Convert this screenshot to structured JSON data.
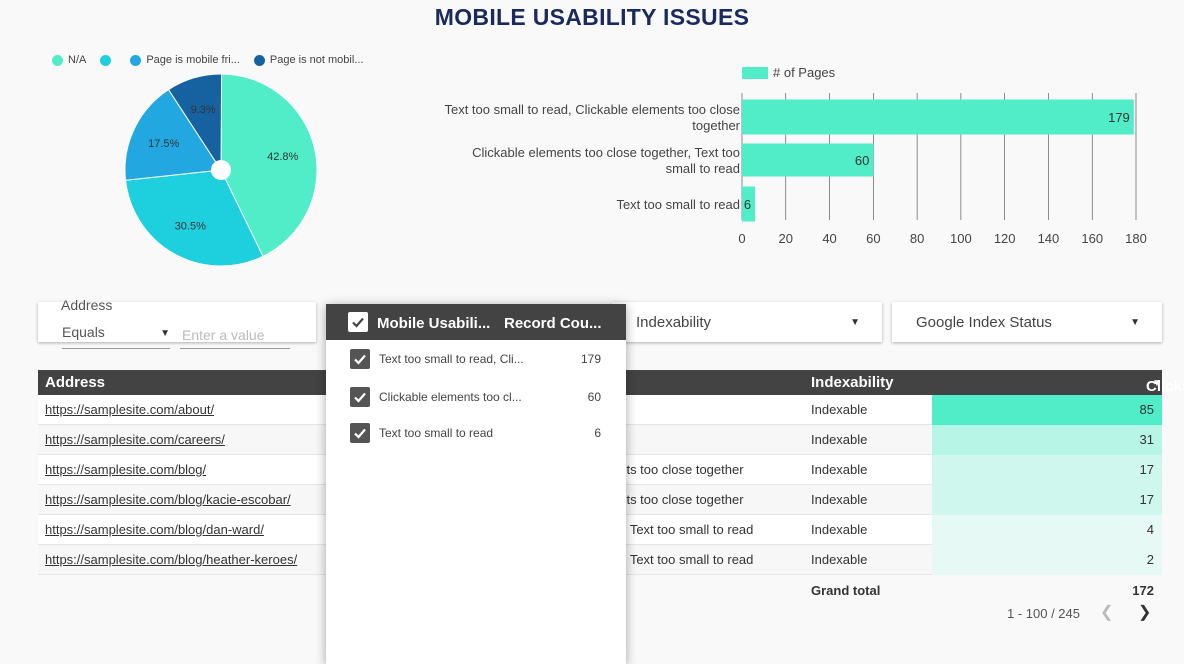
{
  "title": "MOBILE USABILITY ISSUES",
  "pie": {
    "legend": [
      {
        "label": "N/A",
        "color": "#51edc8"
      },
      {
        "label": "",
        "color": "#1ecfde"
      },
      {
        "label": "Page is mobile fri...",
        "color": "#22a7e0"
      },
      {
        "label": "Page is not mobil...",
        "color": "#1662a0"
      }
    ],
    "slices": [
      {
        "percent": 42.8,
        "label": "42.8%",
        "color": "#51edc8"
      },
      {
        "percent": 30.5,
        "label": "30.5%",
        "color": "#1ecfde"
      },
      {
        "percent": 17.5,
        "label": "17.5%",
        "color": "#22a7e0"
      },
      {
        "percent": 9.3,
        "label": "9.3%",
        "color": "#1662a0"
      }
    ]
  },
  "chart_data": {
    "type": "bar",
    "orientation": "horizontal",
    "legend": "# of Pages",
    "categories": [
      [
        "Text too small to read, Clickable elements too close",
        "together"
      ],
      [
        "Clickable elements too close together, Text too",
        "small to read"
      ],
      [
        "Text too small to read"
      ]
    ],
    "values": [
      179,
      60,
      6
    ],
    "value_labels": [
      "179",
      "60",
      "6"
    ],
    "xlim": [
      0,
      180
    ],
    "xticks": [
      "0",
      "20",
      "40",
      "60",
      "80",
      "100",
      "120",
      "140",
      "160",
      "180"
    ],
    "color": "#51edc8"
  },
  "filters": {
    "address_label": "Address",
    "operator": "Equals",
    "value_placeholder": "Enter a value",
    "indexability": "Indexability",
    "google_index_status": "Google Index Status"
  },
  "dropdown": {
    "header_col1": "Mobile Usabili...",
    "header_col2": "Record Cou...",
    "items": [
      {
        "label": "Text too small to read, Cli...",
        "count": "179"
      },
      {
        "label": "Clickable elements too cl...",
        "count": "60"
      },
      {
        "label": "Text too small to read",
        "count": "6"
      }
    ]
  },
  "table": {
    "headers": {
      "address": "Address",
      "indexability": "Indexability",
      "clicks": "Clicks"
    },
    "rows": [
      {
        "address": "https://samplesite.com/about/",
        "issue": "",
        "indexability": "Indexable",
        "clicks": "85",
        "fill": 1.0
      },
      {
        "address": "https://samplesite.com/careers/",
        "issue": "",
        "indexability": "Indexable",
        "clicks": "31",
        "fill": 0.36
      },
      {
        "address": "https://samplesite.com/blog/",
        "issue": "ents too close together",
        "indexability": "Indexable",
        "clicks": "17",
        "fill": 0.2
      },
      {
        "address": "https://samplesite.com/blog/kacie-escobar/",
        "issue": "ents too close together",
        "indexability": "Indexable",
        "clicks": "17",
        "fill": 0.2
      },
      {
        "address": "https://samplesite.com/blog/dan-ward/",
        "issue": "er, Text too small to read",
        "indexability": "Indexable",
        "clicks": "4",
        "fill": 0.05
      },
      {
        "address": "https://samplesite.com/blog/heather-keroes/",
        "issue": "er, Text too small to read",
        "indexability": "Indexable",
        "clicks": "2",
        "fill": 0.02
      }
    ],
    "total_label": "Grand total",
    "total_value": "172",
    "pagination": "1 - 100 / 245"
  }
}
